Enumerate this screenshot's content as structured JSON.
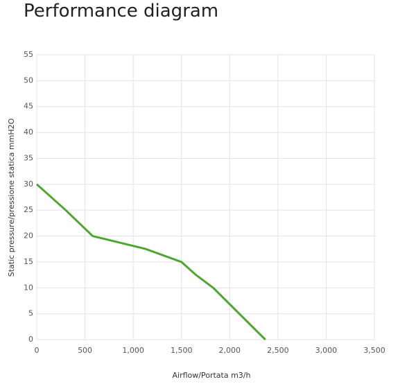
{
  "chart_data": {
    "type": "line",
    "title": "Performance diagram",
    "x_label": "Airflow/Portata m3/h",
    "y_label": "Static pressure/pressione statica mmH2O",
    "x": [
      0,
      300,
      580,
      1130,
      1500,
      1650,
      1830,
      2100,
      2370
    ],
    "series": [
      {
        "color": "#4ca62f",
        "values": [
          30,
          25,
          20,
          17.5,
          15,
          12.5,
          10,
          5,
          0
        ]
      }
    ],
    "xlim": [
      0,
      3500
    ],
    "xticks": [
      0,
      500,
      {
        "value": 1000,
        "label": "1,000"
      },
      {
        "value": 1500,
        "label": "1,500"
      },
      {
        "value": 2000,
        "label": "2,000"
      },
      {
        "value": 2500,
        "label": "2,500"
      },
      {
        "value": 3000,
        "label": "3,000"
      },
      {
        "value": 3500,
        "label": "3,500"
      }
    ],
    "ylim": [
      0,
      55
    ],
    "yticks": [
      0,
      5,
      10,
      15,
      20,
      25,
      30,
      35,
      40,
      45,
      50,
      55
    ],
    "grid": true
  }
}
